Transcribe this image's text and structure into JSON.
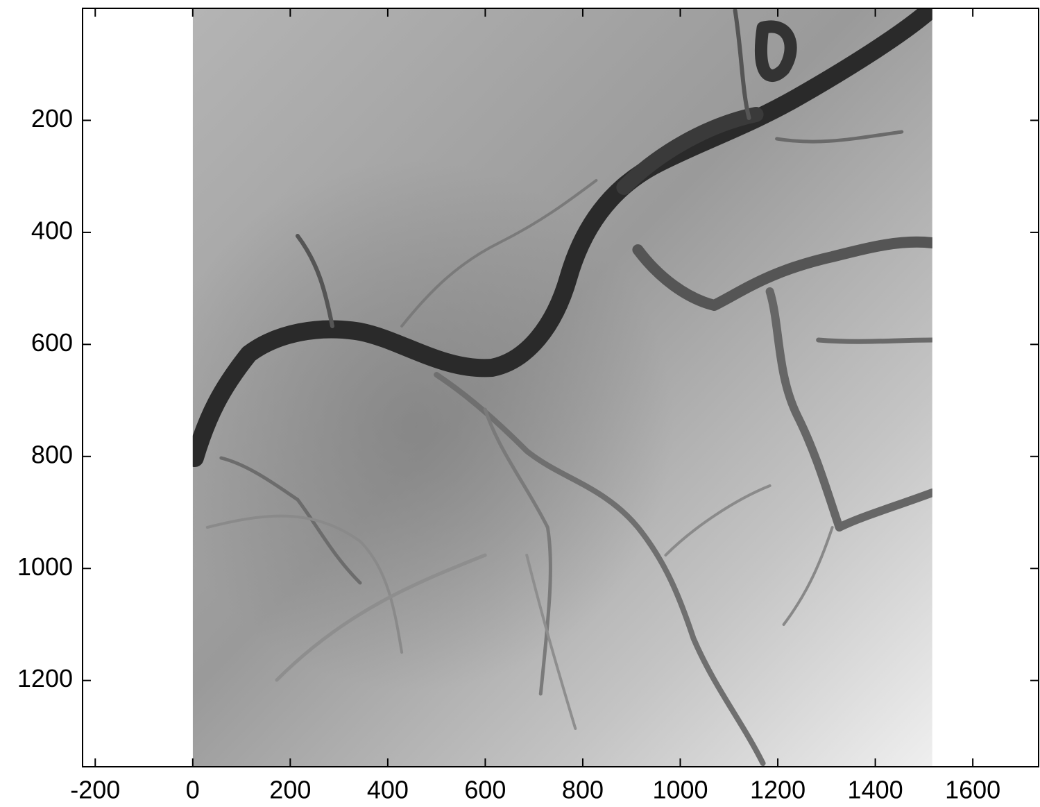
{
  "chart_data": {
    "type": "image",
    "colormap": "gray",
    "xlim": [
      -226,
      1735
    ],
    "ylim": [
      1354,
      0
    ],
    "xticks": [
      -200,
      0,
      200,
      400,
      600,
      800,
      1000,
      1200,
      1400,
      1600
    ],
    "yticks": [
      200,
      400,
      600,
      800,
      1000,
      1200
    ],
    "image_x": [
      0,
      1517
    ],
    "image_y": [
      0,
      1354
    ]
  }
}
